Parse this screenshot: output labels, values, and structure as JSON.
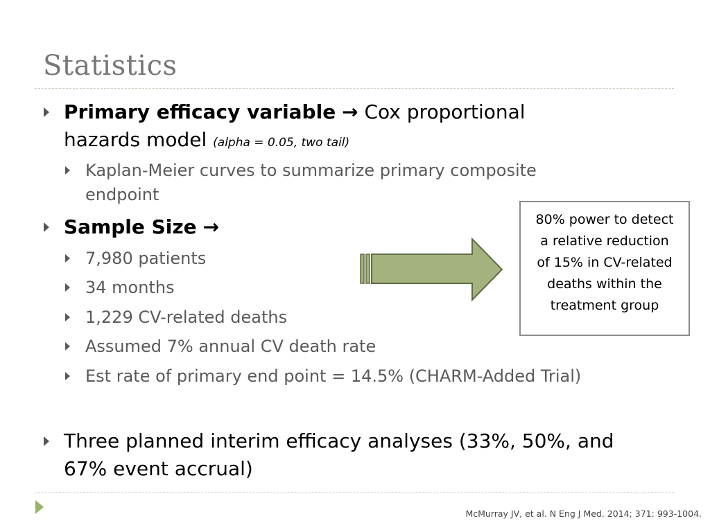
{
  "slide": {
    "title": "Statistics",
    "bullets": {
      "primary_bold": "Primary efficacy variable",
      "primary_arrow": "→",
      "primary_rest": "Cox proportional",
      "primary_line2": "hazards model",
      "primary_note": "(alpha = 0.05, two tail)",
      "km_line1": "Kaplan-Meier curves to summarize primary composite",
      "km_line2": "endpoint",
      "sample_bold": "Sample Size",
      "sample_arrow": "→",
      "sample_items": [
        "7,980 patients",
        "34 months",
        "1,229 CV-related deaths",
        "Assumed 7% annual CV death rate",
        "Est rate of primary end point = 14.5% (CHARM-Added Trial)"
      ],
      "interim_line1": "Three planned interim efficacy analyses (33%, 50%, and",
      "interim_line2": "67% event accrual)"
    },
    "callout": {
      "line1": "80% power to detect",
      "line2": "a relative reduction",
      "line3": "of 15% in CV-related",
      "line4": "deaths within the",
      "line5": "treatment group"
    },
    "citation": "McMurray JV, et al. N Eng J Med. 2014; 371: 993-1004.",
    "colors": {
      "title": "#777777",
      "arrow_fill": "#a4b27d",
      "arrow_stroke": "#5f6b46",
      "accent_triangle": "#9ab26a"
    }
  }
}
